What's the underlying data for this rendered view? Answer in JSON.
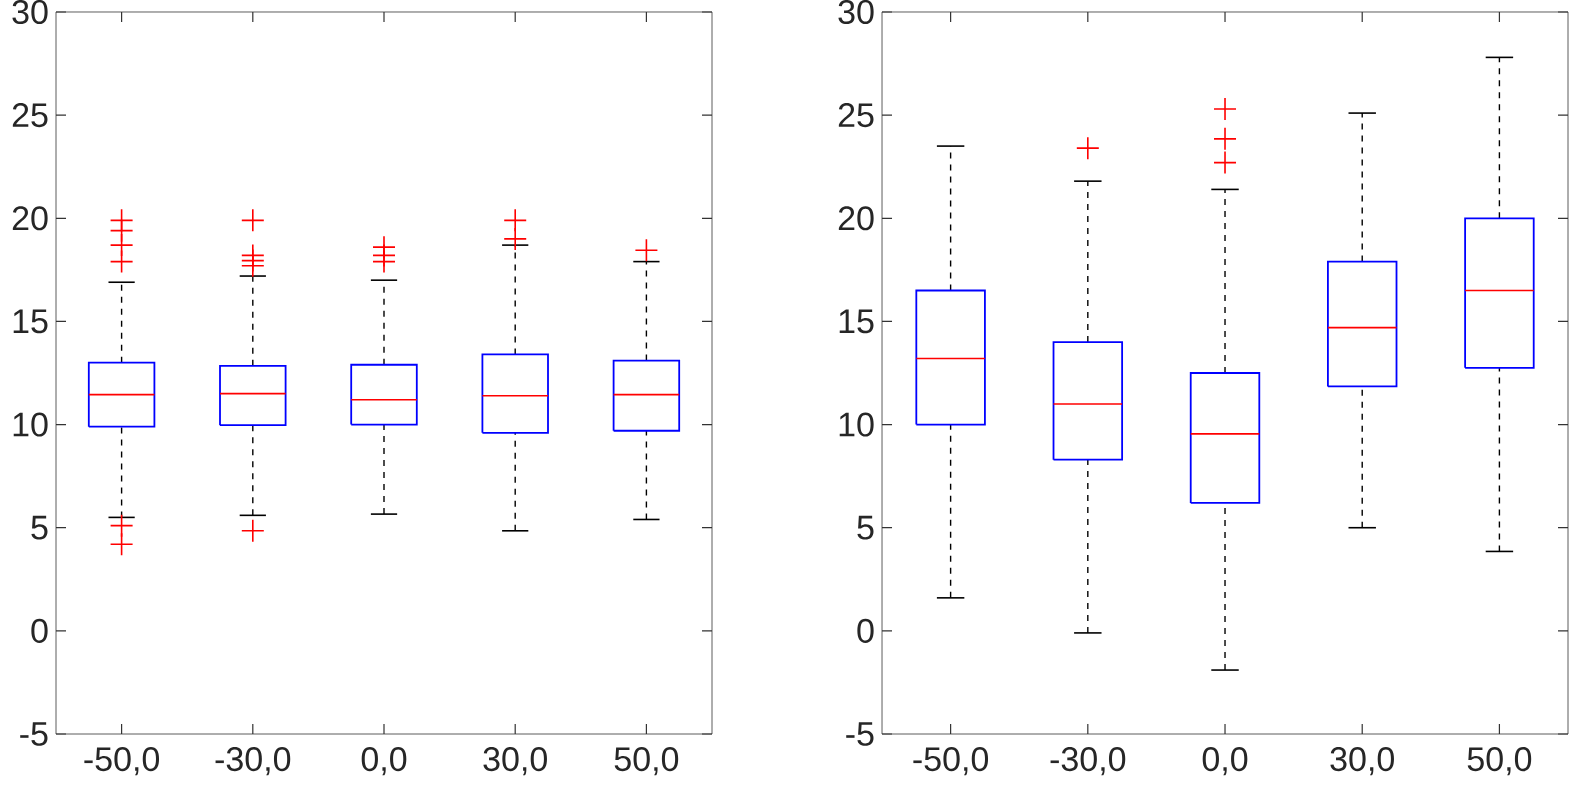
{
  "chart_data": [
    {
      "type": "box",
      "categories": [
        "-50,0",
        "-30,0",
        "0,0",
        "30,0",
        "50,0"
      ],
      "ylim": [
        -5,
        30
      ],
      "yticks": [
        -5,
        0,
        5,
        10,
        15,
        20,
        25,
        30
      ],
      "boxes": [
        {
          "low": 5.5,
          "q1": 9.9,
          "median": 11.45,
          "q3": 13.0,
          "high": 16.9,
          "outliers": [
            19.9,
            19.4,
            18.7,
            17.9,
            5.1,
            4.2
          ]
        },
        {
          "low": 5.6,
          "q1": 9.97,
          "median": 11.5,
          "q3": 12.85,
          "high": 17.2,
          "outliers": [
            19.9,
            18.2,
            17.95,
            17.7,
            4.85
          ]
        },
        {
          "low": 5.66,
          "q1": 10.0,
          "median": 11.2,
          "q3": 12.9,
          "high": 17.0,
          "outliers": [
            18.6,
            18.2,
            17.9
          ]
        },
        {
          "low": 4.85,
          "q1": 9.6,
          "median": 11.4,
          "q3": 13.4,
          "high": 18.7,
          "outliers": [
            19.9,
            19.0
          ]
        },
        {
          "low": 5.4,
          "q1": 9.7,
          "median": 11.45,
          "q3": 13.1,
          "high": 17.9,
          "outliers": [
            18.45
          ]
        }
      ]
    },
    {
      "type": "box",
      "categories": [
        "-50,0",
        "-30,0",
        "0,0",
        "30,0",
        "50,0"
      ],
      "ylim": [
        -5,
        30
      ],
      "yticks": [
        -5,
        0,
        5,
        10,
        15,
        20,
        25,
        30
      ],
      "boxes": [
        {
          "low": 1.6,
          "q1": 10.0,
          "median": 13.2,
          "q3": 16.5,
          "high": 23.5
        },
        {
          "low": -0.1,
          "q1": 8.3,
          "median": 11.0,
          "q3": 14.0,
          "high": 21.8,
          "outliers": [
            23.4
          ]
        },
        {
          "low": -1.9,
          "q1": 6.2,
          "median": 9.55,
          "q3": 12.5,
          "high": 21.4,
          "outliers": [
            25.3,
            23.85,
            22.7
          ]
        },
        {
          "low": 5.0,
          "q1": 11.85,
          "median": 14.7,
          "q3": 17.9,
          "high": 25.1
        },
        {
          "low": 3.85,
          "q1": 12.75,
          "median": 16.5,
          "q3": 20.0,
          "high": 27.8
        }
      ]
    }
  ]
}
